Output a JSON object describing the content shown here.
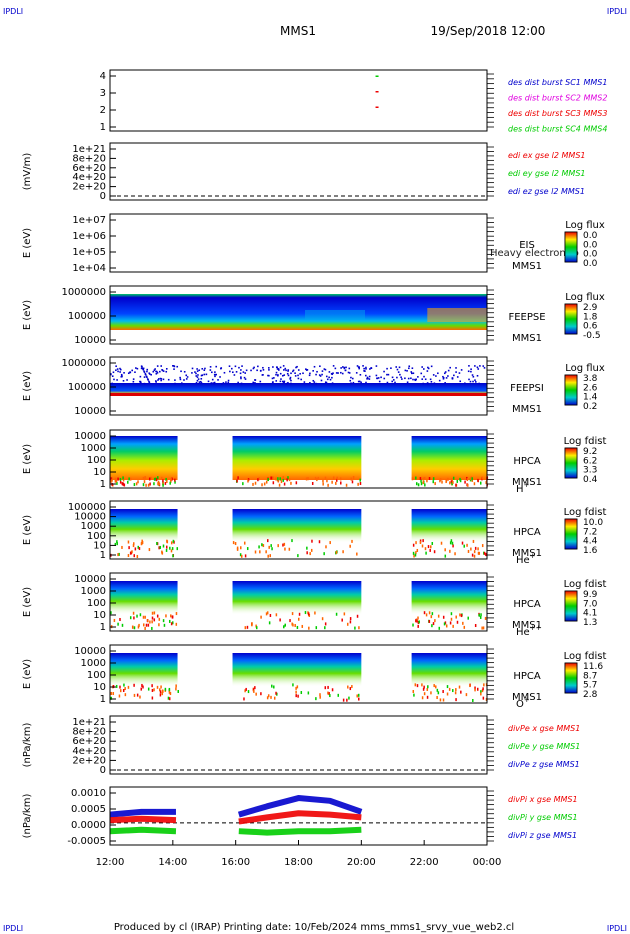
{
  "corner_tags": [
    "IPDLI",
    "IPDLI",
    "IPDLI",
    "IPDLI"
  ],
  "header": {
    "spacecraft": "MMS1",
    "datetime": "19/Sep/2018 12:00"
  },
  "footer": "Produced by cl (IRAP)    Printing date: 10/Feb/2024    mms_mms1_srvy_vue_web2.cl",
  "time_axis": {
    "ticks": [
      "12:00",
      "14:00",
      "16:00",
      "18:00",
      "20:00",
      "22:00",
      "00:00"
    ],
    "start_hour": 12,
    "end_hour": 24
  },
  "colors": {
    "blue": "#0000cc",
    "magenta": "#e000e0",
    "red": "#ee0000",
    "green": "#00cc00",
    "panel_bg": "#ffffff"
  },
  "chart_data": [
    {
      "id": "burst",
      "type": "scatter",
      "ylabel": "",
      "yticks": [
        "4",
        "3",
        "2",
        "1"
      ],
      "legend": [
        {
          "text": "des dist burst SC1 MMS1",
          "color": "#0000cc"
        },
        {
          "text": "des dist burst SC2 MMS2",
          "color": "#e000e0"
        },
        {
          "text": "des dist burst SC3 MMS3",
          "color": "#ee0000"
        },
        {
          "text": "des dist burst SC4 MMS4",
          "color": "#00cc00"
        }
      ],
      "points": [
        {
          "t": 20.5,
          "y": 4,
          "color": "#00cc00"
        },
        {
          "t": 20.5,
          "y": 3,
          "color": "#ee0000"
        },
        {
          "t": 20.5,
          "y": 2,
          "color": "#ee0000"
        }
      ]
    },
    {
      "id": "edi",
      "type": "line",
      "ylabel": "(mV/m)",
      "yticks": [
        "1e+21",
        "8e+20",
        "6e+20",
        "4e+20",
        "2e+20",
        "0"
      ],
      "legend": [
        {
          "text": "edi ex gse l2 MMS1",
          "color": "#ee0000"
        },
        {
          "text": "edi ey gse l2 MMS1",
          "color": "#00cc00"
        },
        {
          "text": "edi ez gse l2 MMS1",
          "color": "#0000cc"
        }
      ]
    },
    {
      "id": "eis",
      "type": "heatmap",
      "ylabel": "E (eV)",
      "yticks": [
        "1e+07",
        "1e+06",
        "1e+05",
        "1e+04"
      ],
      "instrument": [
        "EIS",
        "MMS1"
      ],
      "overlay": "Heavy electron to",
      "cbar_title": "Log flux",
      "cbar_ticks": [
        "0.0",
        "0.0",
        "0.0",
        "0.0"
      ]
    },
    {
      "id": "feepse",
      "type": "heatmap",
      "ylabel": "E (eV)",
      "yticks": [
        "1000000",
        "100000",
        "10000"
      ],
      "instrument": [
        "FEEPSE",
        "MMS1"
      ],
      "cbar_title": "Log flux",
      "cbar_ticks": [
        "2.9",
        "1.8",
        "0.6",
        "-0.5"
      ]
    },
    {
      "id": "feepsi",
      "type": "heatmap",
      "ylabel": "E (eV)",
      "yticks": [
        "1000000",
        "100000",
        "10000"
      ],
      "instrument": [
        "FEEPSI",
        "MMS1"
      ],
      "cbar_title": "Log flux",
      "cbar_ticks": [
        "3.8",
        "2.6",
        "1.4",
        "0.2"
      ]
    },
    {
      "id": "hpca_h",
      "type": "heatmap",
      "ylabel": "E (eV)",
      "yticks": [
        "10000",
        "1000",
        "100",
        "10",
        "1"
      ],
      "instrument": [
        "HPCA",
        "MMS1"
      ],
      "species": "H",
      "species_sup": "+",
      "cbar_title": "Log fdist",
      "cbar_ticks": [
        "9.2",
        "6.2",
        "3.3",
        "0.4"
      ]
    },
    {
      "id": "hpca_he",
      "type": "heatmap",
      "ylabel": "E (eV)",
      "yticks": [
        "100000",
        "10000",
        "1000",
        "100",
        "10",
        "1"
      ],
      "instrument": [
        "HPCA",
        "MMS1"
      ],
      "species": "He",
      "species_sup": "+",
      "cbar_title": "Log fdist",
      "cbar_ticks": [
        "10.0",
        "7.2",
        "4.4",
        "1.6"
      ]
    },
    {
      "id": "hpca_he2",
      "type": "heatmap",
      "ylabel": "E (eV)",
      "yticks": [
        "10000",
        "1000",
        "100",
        "10",
        "1"
      ],
      "instrument": [
        "HPCA",
        "MMS1"
      ],
      "species": "He",
      "species_sup": "++",
      "cbar_title": "Log fdist",
      "cbar_ticks": [
        "9.9",
        "7.0",
        "4.1",
        "1.3"
      ]
    },
    {
      "id": "hpca_o",
      "type": "heatmap",
      "ylabel": "E (eV)",
      "yticks": [
        "10000",
        "1000",
        "100",
        "10",
        "1"
      ],
      "instrument": [
        "HPCA",
        "MMS1"
      ],
      "species": "O",
      "species_sup": "+",
      "cbar_title": "Log fdist",
      "cbar_ticks": [
        "11.6",
        "8.7",
        "5.7",
        "2.8"
      ]
    },
    {
      "id": "divpe",
      "type": "line",
      "ylabel": "(nPa/km)",
      "yticks": [
        "1e+21",
        "8e+20",
        "6e+20",
        "4e+20",
        "2e+20",
        "0"
      ],
      "legend": [
        {
          "text": "divPe x gse MMS1",
          "color": "#ee0000"
        },
        {
          "text": "divPe y gse MMS1",
          "color": "#00cc00"
        },
        {
          "text": "divPe z gse MMS1",
          "color": "#0000cc"
        }
      ]
    },
    {
      "id": "divpi",
      "type": "line",
      "ylabel": "(nPa/km)",
      "yticks": [
        "0.0010",
        "0.0005",
        "0.0000",
        "-0.0005"
      ],
      "ylim": [
        -0.0008,
        0.0013
      ],
      "legend": [
        {
          "text": "divPi x gse MMS1",
          "color": "#ee0000"
        },
        {
          "text": "divPi y gse MMS1",
          "color": "#00cc00"
        },
        {
          "text": "divPi z gse MMS1",
          "color": "#0000cc"
        }
      ],
      "series": [
        {
          "name": "divPi x gse MMS1",
          "color": "#ee0000",
          "t": [
            12.0,
            13.0,
            14.1,
            16.1,
            17.0,
            18.0,
            19.0,
            20.0
          ],
          "values": [
            0.0001,
            0.00015,
            0.0001,
            5e-05,
            0.0002,
            0.00035,
            0.0003,
            0.0002
          ]
        },
        {
          "name": "divPi y gse MMS1",
          "color": "#00cc00",
          "t": [
            12.0,
            13.0,
            14.1,
            16.1,
            17.0,
            18.0,
            19.0,
            20.0
          ],
          "values": [
            -0.0003,
            -0.00025,
            -0.0003,
            -0.0003,
            -0.00035,
            -0.0003,
            -0.0003,
            -0.00025
          ]
        },
        {
          "name": "divPi z gse MMS1",
          "color": "#0000cc",
          "t": [
            12.0,
            13.0,
            14.1,
            16.1,
            17.0,
            18.0,
            19.0,
            20.0
          ],
          "values": [
            0.0003,
            0.0004,
            0.0004,
            0.0003,
            0.0006,
            0.0009,
            0.0008,
            0.0004
          ]
        }
      ]
    }
  ]
}
